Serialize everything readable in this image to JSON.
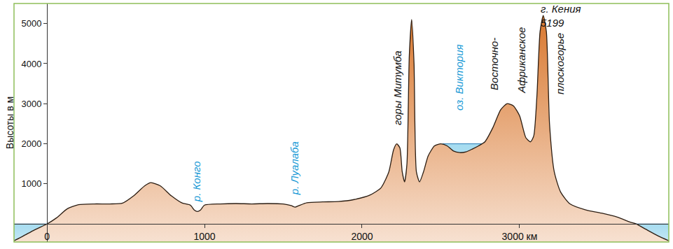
{
  "chart_data": {
    "type": "area",
    "y_label": "Высоты в м",
    "xlim": [
      -209,
      3947
    ],
    "ylim": [
      -450,
      5500
    ],
    "xticks": [
      0,
      1000,
      2000,
      {
        "value": 3000,
        "label": "3000 км"
      }
    ],
    "yticks": [
      1000,
      2000,
      3000,
      4000,
      5000
    ],
    "grid": false,
    "series": [
      {
        "type": "area",
        "color": "#a6dcf0",
        "x": [
          -209,
          3947
        ],
        "values": [
          0,
          0
        ]
      },
      {
        "type": "area",
        "color": "#a6dcf0",
        "x": [
          2510,
          2770
        ],
        "values": [
          2000,
          2000
        ]
      },
      {
        "type": "area",
        "color": "#d9782f",
        "x": [
          -209,
          -150,
          -80,
          0,
          60,
          130,
          200,
          300,
          400,
          480,
          550,
          620,
          660,
          720,
          790,
          860,
          910,
          935,
          955,
          975,
          1000,
          1100,
          1200,
          1300,
          1400,
          1500,
          1550,
          1575,
          1600,
          1650,
          1750,
          1850,
          1950,
          2050,
          2120,
          2170,
          2200,
          2220,
          2240,
          2255,
          2270,
          2285,
          2300,
          2315,
          2330,
          2345,
          2365,
          2390,
          2420,
          2460,
          2500,
          2540,
          2580,
          2620,
          2660,
          2700,
          2740,
          2780,
          2830,
          2880,
          2920,
          2960,
          3000,
          3040,
          3070,
          3090,
          3110,
          3130,
          3150,
          3170,
          3190,
          3220,
          3260,
          3320,
          3420,
          3520,
          3620,
          3700,
          3740,
          3800,
          3880,
          3947
        ],
        "values": [
          -420,
          -300,
          -150,
          0,
          150,
          380,
          480,
          500,
          500,
          520,
          700,
          950,
          1030,
          950,
          700,
          520,
          470,
          350,
          310,
          350,
          470,
          500,
          510,
          500,
          510,
          500,
          460,
          420,
          460,
          530,
          550,
          560,
          610,
          720,
          900,
          1300,
          1850,
          2000,
          1900,
          1300,
          1050,
          1500,
          4200,
          5100,
          4000,
          1300,
          1050,
          1300,
          1700,
          1950,
          2000,
          1950,
          1820,
          1780,
          1800,
          1870,
          1950,
          2050,
          2400,
          2850,
          3000,
          2950,
          2700,
          2150,
          2050,
          2200,
          3200,
          4800,
          5199,
          4800,
          2500,
          1300,
          800,
          500,
          350,
          270,
          170,
          50,
          0,
          -130,
          -300,
          -420
        ]
      }
    ],
    "annotations": [
      {
        "text": "р. Конго",
        "x": 950,
        "y": 1060,
        "color": "#1a9ad6"
      },
      {
        "text": "р. Луалаба",
        "x": 1570,
        "y": 1380,
        "color": "#1a9ad6"
      },
      {
        "text": "горы Митумба",
        "x": 2227,
        "y": 3390,
        "color": "#111111"
      },
      {
        "text": "оз. Виктория",
        "x": 2613,
        "y": 3650,
        "color": "#1a9ad6"
      },
      {
        "text": "Восточно-",
        "x": 2840,
        "y": 4000,
        "color": "#111111"
      },
      {
        "text": "Африканское",
        "x": 3013,
        "y": 4090,
        "color": "#111111"
      },
      {
        "text": "плоскогорье",
        "x": 3258,
        "y": 4000,
        "color": "#111111"
      }
    ],
    "peak_label": {
      "text": "г. Кения",
      "value": 5199,
      "x": 3124,
      "y": 5200
    }
  }
}
